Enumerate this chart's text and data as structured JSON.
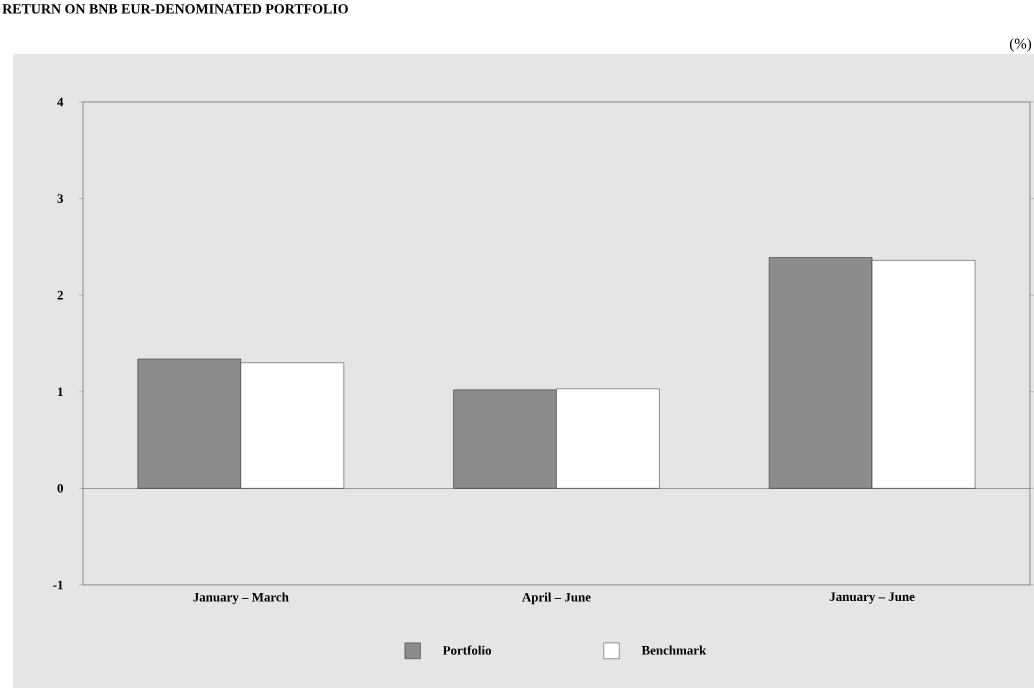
{
  "chart_data": {
    "type": "bar",
    "title": "RETURN ON BNB EUR-DENOMINATED PORTFOLIO",
    "ylabel": "(%)",
    "categories": [
      "January – March",
      "April – June",
      "January – June"
    ],
    "series": [
      {
        "name": "Portfolio",
        "color": "#8c8c8c",
        "values": [
          1.34,
          1.02,
          2.39
        ]
      },
      {
        "name": "Benchmark",
        "color": "#ffffff",
        "values": [
          1.3,
          1.03,
          2.36
        ]
      }
    ],
    "ylim": [
      -1,
      4
    ],
    "yticks": [
      -1,
      0,
      1,
      2,
      3,
      4
    ],
    "ref_lines": [
      {
        "axis": "y",
        "value": 0,
        "color": "#000000"
      }
    ],
    "grid": false,
    "legend": "bottom"
  }
}
